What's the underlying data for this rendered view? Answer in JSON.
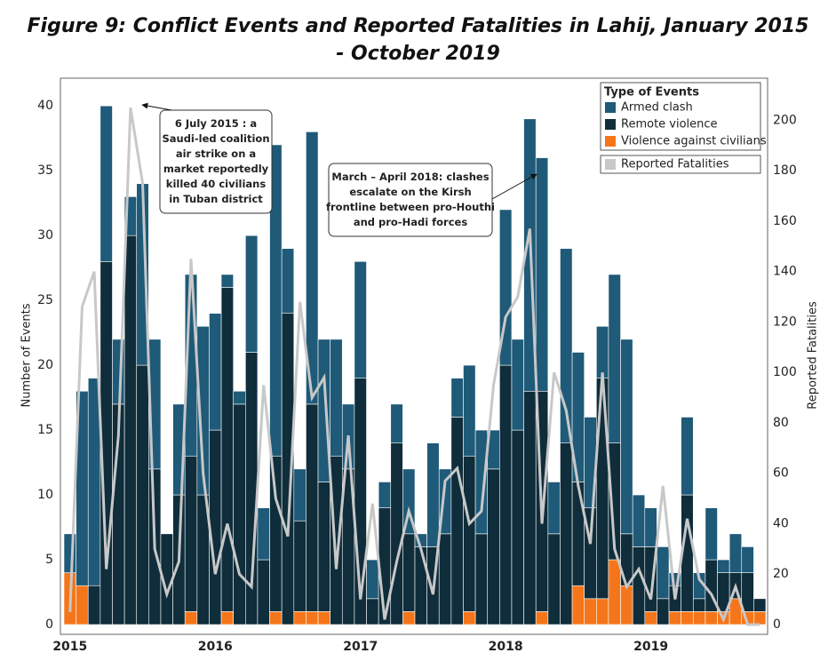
{
  "chart_data": {
    "type": "bar",
    "title": "Figure 9: Conflict Events and Reported Fatalities in Lahij, January 2015 - October 2019",
    "categories": [
      "2015",
      null,
      null,
      null,
      null,
      null,
      null,
      null,
      null,
      null,
      null,
      null,
      "2016",
      null,
      null,
      null,
      null,
      null,
      null,
      null,
      null,
      null,
      null,
      null,
      "2017",
      null,
      null,
      null,
      null,
      null,
      null,
      null,
      null,
      null,
      null,
      null,
      "2018",
      null,
      null,
      null,
      null,
      null,
      null,
      null,
      null,
      null,
      null,
      null,
      "2019",
      null,
      null,
      null,
      null,
      null,
      null,
      null,
      null,
      null
    ],
    "legend_title": "Type of Events",
    "series": [
      {
        "name": "Armed clash",
        "color": "#1f5a78",
        "values": [
          3,
          15,
          16,
          12,
          5,
          3,
          14,
          10,
          0,
          7,
          14,
          13,
          9,
          1,
          1,
          9,
          4,
          24,
          5,
          4,
          21,
          11,
          9,
          5,
          9,
          3,
          2,
          3,
          5,
          1,
          8,
          5,
          3,
          7,
          8,
          3,
          12,
          7,
          21,
          18,
          4,
          15,
          10,
          7,
          4,
          13,
          15,
          4,
          3,
          4,
          1,
          6,
          2,
          4,
          1,
          3,
          2,
          0
        ]
      },
      {
        "name": "Remote violence",
        "color": "#0f2d3b",
        "values": [
          0,
          0,
          3,
          28,
          17,
          30,
          20,
          12,
          7,
          10,
          12,
          10,
          15,
          25,
          17,
          21,
          5,
          12,
          24,
          7,
          16,
          10,
          13,
          12,
          19,
          2,
          9,
          14,
          6,
          6,
          6,
          7,
          16,
          12,
          7,
          12,
          20,
          15,
          18,
          17,
          7,
          14,
          8,
          7,
          17,
          9,
          4,
          6,
          5,
          2,
          2,
          9,
          1,
          4,
          3,
          2,
          3,
          1
        ]
      },
      {
        "name": "Violence against civilians",
        "color": "#f5761a",
        "values": [
          4,
          3,
          0,
          0,
          0,
          0,
          0,
          0,
          0,
          0,
          1,
          0,
          0,
          1,
          0,
          0,
          0,
          1,
          0,
          1,
          1,
          1,
          0,
          0,
          0,
          0,
          0,
          0,
          1,
          0,
          0,
          0,
          0,
          1,
          0,
          0,
          0,
          0,
          0,
          1,
          0,
          0,
          3,
          2,
          2,
          5,
          3,
          0,
          1,
          0,
          1,
          1,
          1,
          1,
          1,
          2,
          1,
          1
        ]
      },
      {
        "name": "Reported Fatalities",
        "color": "#c8c8c8",
        "axis": "y2",
        "type": "line",
        "values": [
          5,
          126,
          140,
          22,
          75,
          205,
          175,
          30,
          12,
          25,
          145,
          60,
          20,
          40,
          20,
          15,
          95,
          50,
          35,
          128,
          90,
          98,
          22,
          75,
          10,
          48,
          2,
          25,
          45,
          30,
          12,
          57,
          62,
          40,
          45,
          95,
          122,
          130,
          157,
          40,
          100,
          85,
          55,
          32,
          100,
          30,
          15,
          22,
          10,
          55,
          10,
          42,
          18,
          12,
          2,
          15,
          0,
          0
        ]
      }
    ],
    "ylabel": "Number of Events",
    "y2label": "Reported Fatalities",
    "ylim": [
      0,
      42
    ],
    "yticks": [
      0,
      5,
      10,
      15,
      20,
      25,
      30,
      35,
      40
    ],
    "y2lim": [
      0,
      216
    ],
    "y2ticks": [
      0,
      20,
      40,
      60,
      80,
      100,
      120,
      140,
      160,
      180,
      200
    ],
    "annotations": [
      {
        "lines": [
          "6 July 2015 : a",
          "Saudi-led coalition",
          "air strike on a",
          "market reportedly",
          "killed 40 civilians",
          "in Tuban district"
        ]
      },
      {
        "lines": [
          "March – April 2018: clashes",
          "escalate on the Kirsh",
          "frontline between pro-Houthi",
          "and pro-Hadi forces"
        ]
      }
    ]
  }
}
